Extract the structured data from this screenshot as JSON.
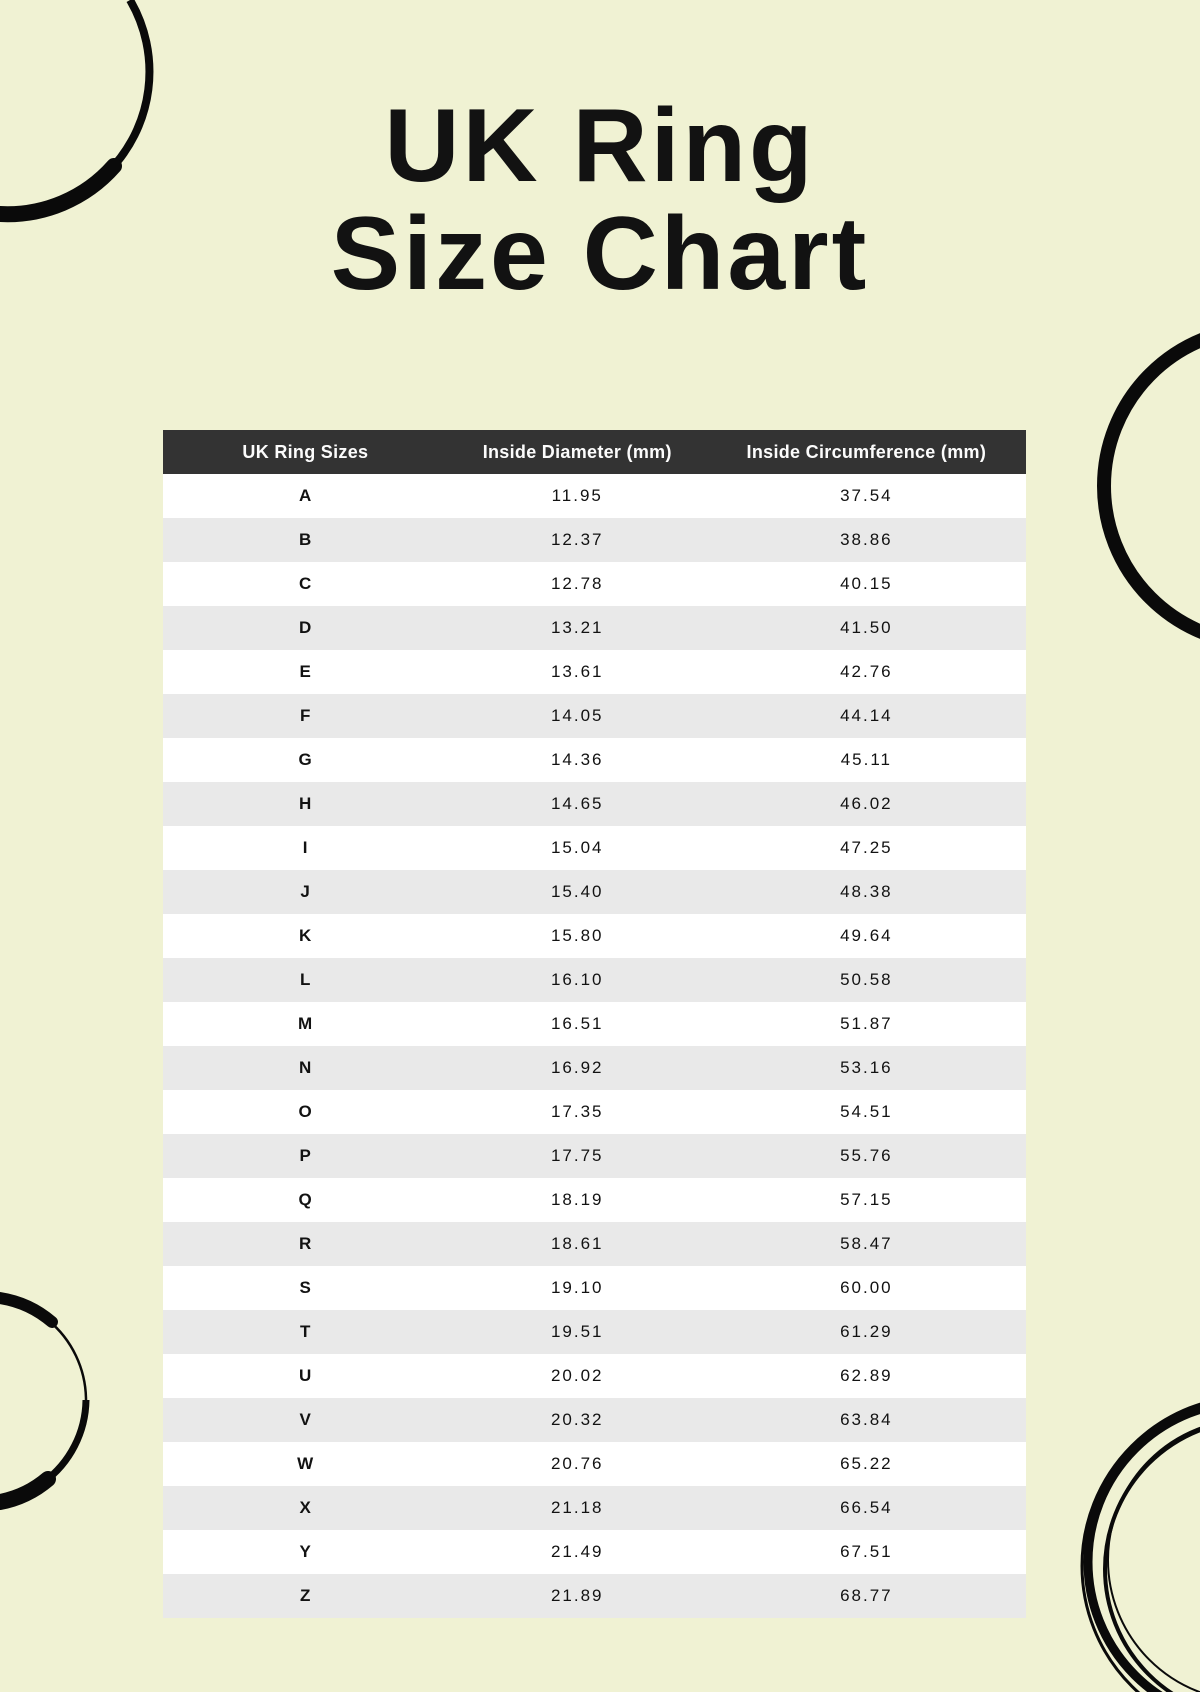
{
  "page": {
    "title_line1": "UK Ring",
    "title_line2": "Size Chart"
  },
  "colors": {
    "background": "#F0F2D3",
    "headerBg": "#333333",
    "headerText": "#FCFCFC",
    "rowBg": "#FFFFFF",
    "rowAltBg": "#E9E9E9",
    "textDark": "#121212",
    "decoration": "#0A0A0A"
  },
  "decorations": [
    "circle-outline-top-left",
    "circle-outline-right",
    "brush-circle-bottom-left",
    "sketch-circle-bottom-right"
  ],
  "chart_data": {
    "type": "table",
    "title": "UK Ring Size Chart",
    "columns": [
      "UK Ring Sizes",
      "Inside Diameter (mm)",
      "Inside Circumference (mm)"
    ],
    "rows": [
      [
        "A",
        "11.95",
        "37.54"
      ],
      [
        "B",
        "12.37",
        "38.86"
      ],
      [
        "C",
        "12.78",
        "40.15"
      ],
      [
        "D",
        "13.21",
        "41.50"
      ],
      [
        "E",
        "13.61",
        "42.76"
      ],
      [
        "F",
        "14.05",
        "44.14"
      ],
      [
        "G",
        "14.36",
        "45.11"
      ],
      [
        "H",
        "14.65",
        "46.02"
      ],
      [
        "I",
        "15.04",
        "47.25"
      ],
      [
        "J",
        "15.40",
        "48.38"
      ],
      [
        "K",
        "15.80",
        "49.64"
      ],
      [
        "L",
        "16.10",
        "50.58"
      ],
      [
        "M",
        "16.51",
        "51.87"
      ],
      [
        "N",
        "16.92",
        "53.16"
      ],
      [
        "O",
        "17.35",
        "54.51"
      ],
      [
        "P",
        "17.75",
        "55.76"
      ],
      [
        "Q",
        "18.19",
        "57.15"
      ],
      [
        "R",
        "18.61",
        "58.47"
      ],
      [
        "S",
        "19.10",
        "60.00"
      ],
      [
        "T",
        "19.51",
        "61.29"
      ],
      [
        "U",
        "20.02",
        "62.89"
      ],
      [
        "V",
        "20.32",
        "63.84"
      ],
      [
        "W",
        "20.76",
        "65.22"
      ],
      [
        "X",
        "21.18",
        "66.54"
      ],
      [
        "Y",
        "21.49",
        "67.51"
      ],
      [
        "Z",
        "21.89",
        "68.77"
      ]
    ]
  }
}
